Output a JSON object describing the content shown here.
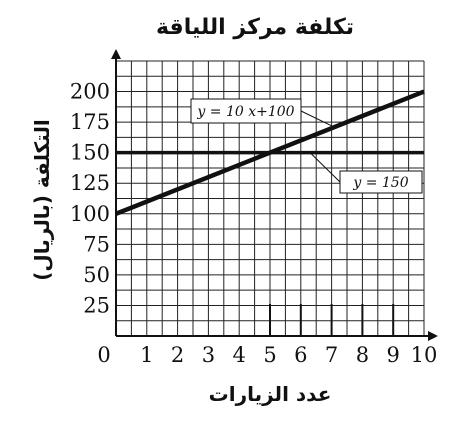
{
  "chart_data": {
    "type": "line",
    "title": "تكلفة مركز اللياقة",
    "xlabel": "عدد الزيارات",
    "ylabel": "التكلفة (بالريال)",
    "xlim": [
      0,
      10
    ],
    "ylim": [
      0,
      225
    ],
    "x_ticks": [
      0,
      1,
      2,
      3,
      4,
      5,
      6,
      7,
      8,
      9,
      10
    ],
    "y_ticks": [
      25,
      50,
      75,
      100,
      125,
      150,
      175,
      200
    ],
    "grid": true,
    "grid_minor_x": 0.5,
    "grid_minor_y": 12.5,
    "series": [
      {
        "name": "y = 10 x+100",
        "x": [
          0,
          10
        ],
        "y": [
          100,
          200
        ]
      },
      {
        "name": "y = 150",
        "x": [
          0,
          10
        ],
        "y": [
          150,
          150
        ]
      }
    ],
    "colors": {
      "line": "#111111",
      "grid": "#222222",
      "background": "#ffffff"
    }
  }
}
